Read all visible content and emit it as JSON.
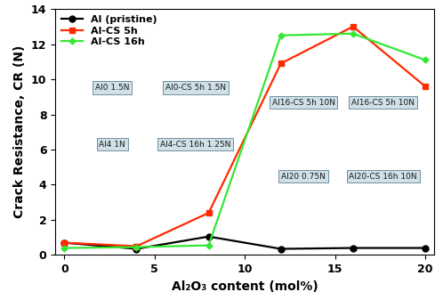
{
  "chart_data": {
    "type": "line",
    "x_label": "Al₂O₃ content (mol%)",
    "y_label": "Crack Resistance, CR (N)",
    "x": [
      0,
      4,
      8,
      12,
      16,
      20
    ],
    "series": [
      {
        "name": "Al (pristine)",
        "color": "#000000",
        "marker": "circle",
        "line_style": "solid",
        "values": [
          0.7,
          0.35,
          1.05,
          0.35,
          0.4,
          0.4
        ]
      },
      {
        "name": "Al-CS 5h",
        "color": "#ff2a00",
        "marker": "square",
        "line_style": "solid",
        "values": [
          0.7,
          0.5,
          2.4,
          10.9,
          13.0,
          9.6
        ]
      },
      {
        "name": "Al-CS 16h",
        "color": "#33e833",
        "marker": "diamond",
        "line_style": "solid",
        "values": [
          0.4,
          0.45,
          0.55,
          12.5,
          12.6,
          11.1
        ]
      }
    ],
    "annotations": [
      "Al0 1.5N",
      "Al0-CS 5h 1.5N",
      "Al4 1N",
      "Al4-CS 16h 1.25N",
      "Al16-CS 5h 10N",
      "Al16-CS 5h 10N",
      "Al20 0.75N",
      "Al20-CS 16h 10N"
    ],
    "xlim": [
      -0.5,
      20.5
    ],
    "xticks": [
      0,
      5,
      10,
      15,
      20
    ],
    "ylim": [
      0,
      14
    ],
    "yticks": [
      0,
      2,
      4,
      6,
      8,
      10,
      12,
      14
    ],
    "grid": false,
    "legend": "upper left"
  }
}
